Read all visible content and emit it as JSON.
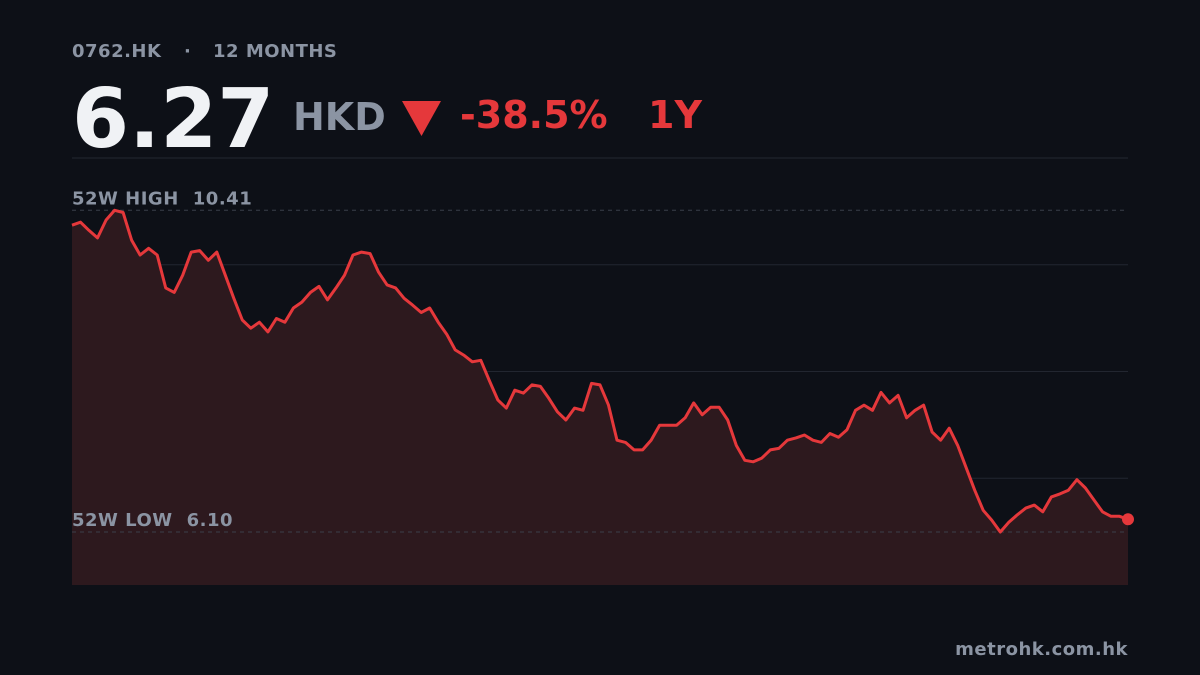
{
  "header": {
    "ticker": "0762.HK",
    "separator": "·",
    "period": "12 MONTHS",
    "price": "6.27",
    "currency": "HKD",
    "change": "-38.5%",
    "range": "1Y"
  },
  "chart_data": {
    "type": "line",
    "color": "#e5383b",
    "values": [
      10.21,
      10.25,
      10.14,
      10.04,
      10.28,
      10.41,
      10.38,
      10.01,
      9.81,
      9.9,
      9.81,
      9.37,
      9.31,
      9.54,
      9.85,
      9.87,
      9.74,
      9.85,
      9.54,
      9.23,
      8.94,
      8.83,
      8.91,
      8.78,
      8.96,
      8.91,
      9.1,
      9.18,
      9.31,
      9.39,
      9.21,
      9.37,
      9.54,
      9.81,
      9.85,
      9.83,
      9.58,
      9.41,
      9.37,
      9.23,
      9.14,
      9.04,
      9.1,
      8.91,
      8.75,
      8.54,
      8.47,
      8.38,
      8.4,
      8.13,
      7.87,
      7.76,
      8.0,
      7.96,
      8.07,
      8.05,
      7.89,
      7.71,
      7.6,
      7.76,
      7.73,
      8.09,
      8.07,
      7.8,
      7.33,
      7.3,
      7.2,
      7.2,
      7.33,
      7.53,
      7.53,
      7.53,
      7.63,
      7.83,
      7.67,
      7.77,
      7.77,
      7.6,
      7.26,
      7.06,
      7.04,
      7.09,
      7.2,
      7.22,
      7.33,
      7.36,
      7.4,
      7.33,
      7.3,
      7.42,
      7.37,
      7.47,
      7.73,
      7.8,
      7.73,
      7.97,
      7.83,
      7.93,
      7.63,
      7.73,
      7.8,
      7.44,
      7.33,
      7.49,
      7.26,
      6.96,
      6.66,
      6.39,
      6.26,
      6.1,
      6.23,
      6.33,
      6.42,
      6.46,
      6.37,
      6.57,
      6.61,
      6.66,
      6.8,
      6.69,
      6.53,
      6.37,
      6.31,
      6.31,
      6.27
    ],
    "ylim": [
      5.39,
      11.11
    ],
    "high": {
      "label": "52W HIGH",
      "value": 10.41,
      "value_label": "10.41"
    },
    "low": {
      "label": "52W LOW",
      "value": 6.1,
      "value_label": "6.10"
    }
  },
  "footer": {
    "source": "metrohk.com.hk"
  }
}
